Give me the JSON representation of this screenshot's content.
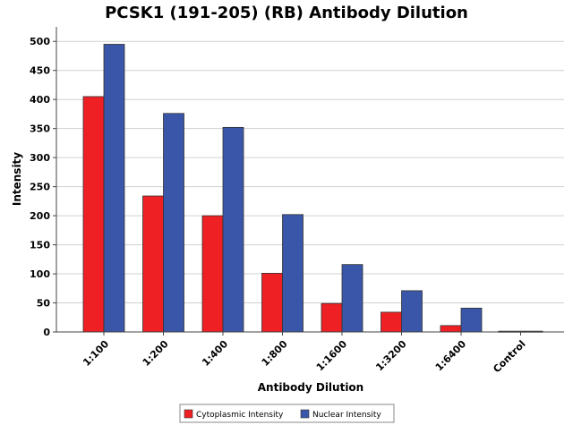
{
  "chart_data": {
    "type": "bar",
    "title": "PCSK1 (191-205) (RB) Antibody Dilution",
    "xlabel": "Antibody Dilution",
    "ylabel": "Intensity",
    "ylim": [
      0,
      525
    ],
    "yticks": [
      0,
      50,
      100,
      150,
      200,
      250,
      300,
      350,
      400,
      450,
      500
    ],
    "grid": true,
    "legend_position": "bottom-center",
    "categories": [
      "1:100",
      "1:200",
      "1:400",
      "1:800",
      "1:1600",
      "1:3200",
      "1:6400",
      "Control"
    ],
    "series": [
      {
        "name": "Cytoplasmic Intensity",
        "color": "#ee2024",
        "values": [
          405,
          234,
          200,
          101,
          49,
          34,
          11,
          0
        ]
      },
      {
        "name": "Nuclear Intensity",
        "color": "#3a56a8",
        "values": [
          495,
          376,
          352,
          202,
          116,
          71,
          41,
          0
        ]
      }
    ],
    "extra_marks": [
      {
        "category": "Control",
        "description": "single flat dark bar near zero",
        "color": "#444444",
        "value": 2
      }
    ]
  }
}
